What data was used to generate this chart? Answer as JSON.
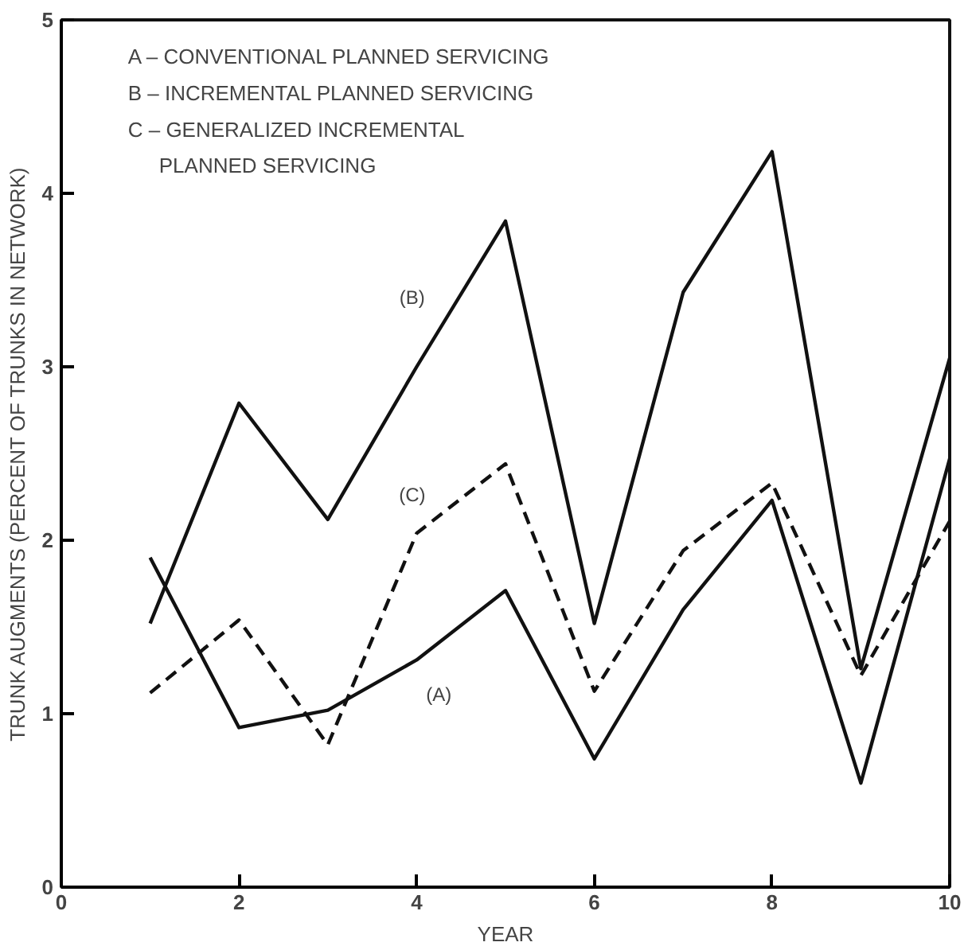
{
  "chart_data": {
    "type": "line",
    "xlabel": "YEAR",
    "ylabel": "TRUNK AUGMENTS (PERCENT OF TRUNKS IN NETWORK)",
    "x": [
      1,
      2,
      3,
      4,
      5,
      6,
      7,
      8,
      9,
      10
    ],
    "series": [
      {
        "name": "(A)",
        "color": "#111111",
        "line_style": "solid",
        "values": [
          1.9,
          0.92,
          1.02,
          1.31,
          1.71,
          0.74,
          1.6,
          2.23,
          0.6,
          2.47
        ]
      },
      {
        "name": "(B)",
        "color": "#111111",
        "line_style": "solid",
        "values": [
          1.52,
          2.79,
          2.12,
          3.0,
          3.84,
          1.52,
          3.43,
          4.24,
          1.26,
          3.05
        ]
      },
      {
        "name": "(C)",
        "color": "#111111",
        "line_style": "dashed",
        "values": [
          1.12,
          1.54,
          0.82,
          2.04,
          2.44,
          1.13,
          1.94,
          2.33,
          1.22,
          2.11
        ]
      }
    ],
    "xlim": [
      0,
      10
    ],
    "ylim": [
      0,
      5
    ],
    "xticks": [
      0,
      2,
      4,
      6,
      8,
      10
    ],
    "yticks": [
      0,
      1,
      2,
      3,
      4,
      5
    ],
    "grid": false,
    "marker": "none",
    "annotations": [
      "A – CONVENTIONAL PLANNED SERVICING",
      "B – INCREMENTAL PLANNED SERVICING",
      "C – GENERALIZED INCREMENTAL\nPLANNED SERVICING"
    ]
  }
}
